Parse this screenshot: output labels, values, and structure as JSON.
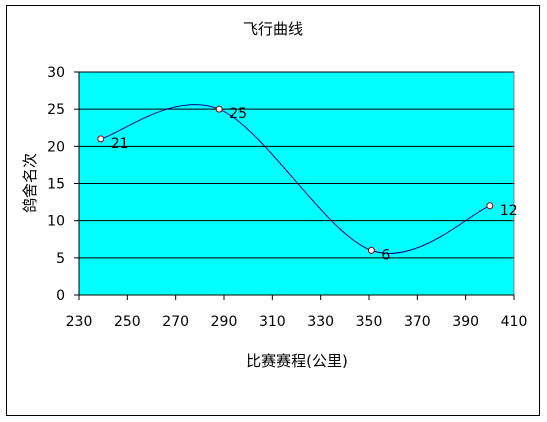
{
  "chart_data": {
    "type": "line",
    "title": "飞行曲线",
    "xlabel": "比赛赛程(公里)",
    "ylabel": "鸽舍名次",
    "xlim": [
      230,
      410
    ],
    "ylim": [
      0,
      30
    ],
    "xticks": [
      230,
      250,
      270,
      290,
      310,
      330,
      350,
      370,
      390,
      410
    ],
    "yticks": [
      0,
      5,
      10,
      15,
      20,
      25,
      30
    ],
    "grid": "horizontal",
    "plot_background": "#00FFFF",
    "line_color": "#00008B",
    "series": [
      {
        "x": [
          239,
          288,
          351,
          400
        ],
        "values": [
          21,
          25,
          6,
          12
        ],
        "labels": [
          "21",
          "25",
          "6",
          "12"
        ]
      }
    ]
  }
}
